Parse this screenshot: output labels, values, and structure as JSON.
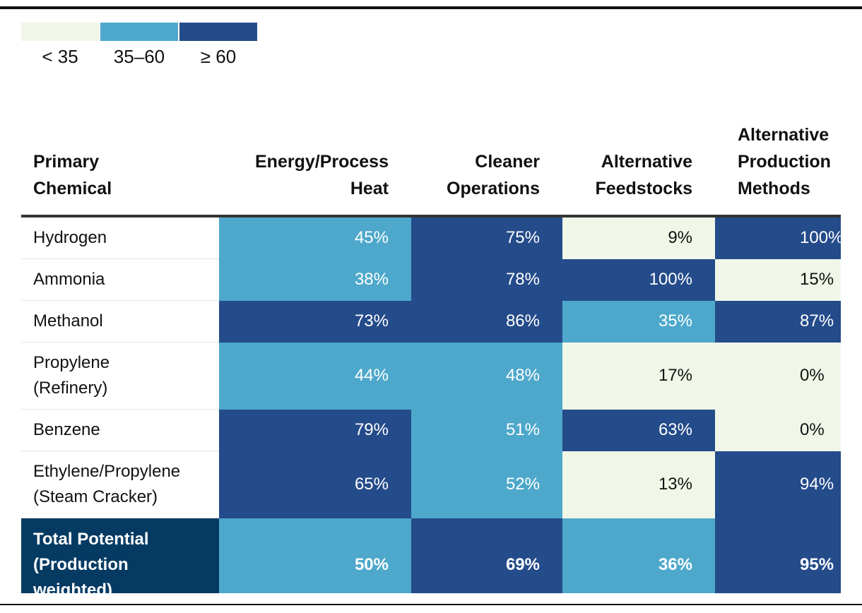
{
  "legend": [
    {
      "label": "< 35",
      "color": "#f0f7e8"
    },
    {
      "label": "35–60",
      "color": "#4da8cb"
    },
    {
      "label": "≥ 60",
      "color": "#244b8a"
    }
  ],
  "colors": {
    "low": "#f0f7e8",
    "mid": "#4da8cb",
    "high": "#244b8a",
    "total_label_bg": "#053b63",
    "light_text": "#111111",
    "dark_text": "#ffffff"
  },
  "chart_data": {
    "type": "table",
    "title": "",
    "thresholds": [
      35,
      60
    ],
    "columns": [
      {
        "line1": "Primary",
        "line2": "Chemical",
        "line3": ""
      },
      {
        "line1": "Energy/Process",
        "line2": "Heat",
        "line3": ""
      },
      {
        "line1": "Cleaner",
        "line2": "Operations",
        "line3": ""
      },
      {
        "line1": "Alternative",
        "line2": "Feedstocks",
        "line3": ""
      },
      {
        "line1": "Alternative",
        "line2": "Production",
        "line3": "Methods"
      }
    ],
    "rows": [
      {
        "line1": "Hydrogen",
        "line2": "",
        "line3": "",
        "values": [
          45,
          75,
          9,
          100
        ],
        "labels": [
          "45%",
          "75%",
          "9%",
          "100%"
        ]
      },
      {
        "line1": "Ammonia",
        "line2": "",
        "line3": "",
        "values": [
          38,
          78,
          100,
          15
        ],
        "labels": [
          "38%",
          "78%",
          "100%",
          "15%"
        ]
      },
      {
        "line1": "Methanol",
        "line2": "",
        "line3": "",
        "values": [
          73,
          86,
          35,
          87
        ],
        "labels": [
          "73%",
          "86%",
          "35%",
          "87%"
        ]
      },
      {
        "line1": "Propylene",
        "line2": "(Refinery)",
        "line3": "",
        "values": [
          44,
          48,
          17,
          0
        ],
        "labels": [
          "44%",
          "48%",
          "17%",
          "0%"
        ]
      },
      {
        "line1": "Benzene",
        "line2": "",
        "line3": "",
        "values": [
          79,
          51,
          63,
          0
        ],
        "labels": [
          "79%",
          "51%",
          "63%",
          "0%"
        ]
      },
      {
        "line1": "Ethylene/Propylene",
        "line2": "(Steam Cracker)",
        "line3": "",
        "values": [
          65,
          52,
          13,
          94
        ],
        "labels": [
          "65%",
          "52%",
          "13%",
          "94%"
        ]
      }
    ],
    "total": {
      "line1": "Total Potential",
      "line2": "(Production",
      "line3": "weighted)",
      "values": [
        50,
        69,
        36,
        95
      ],
      "labels": [
        "50%",
        "69%",
        "36%",
        "95%"
      ]
    }
  }
}
